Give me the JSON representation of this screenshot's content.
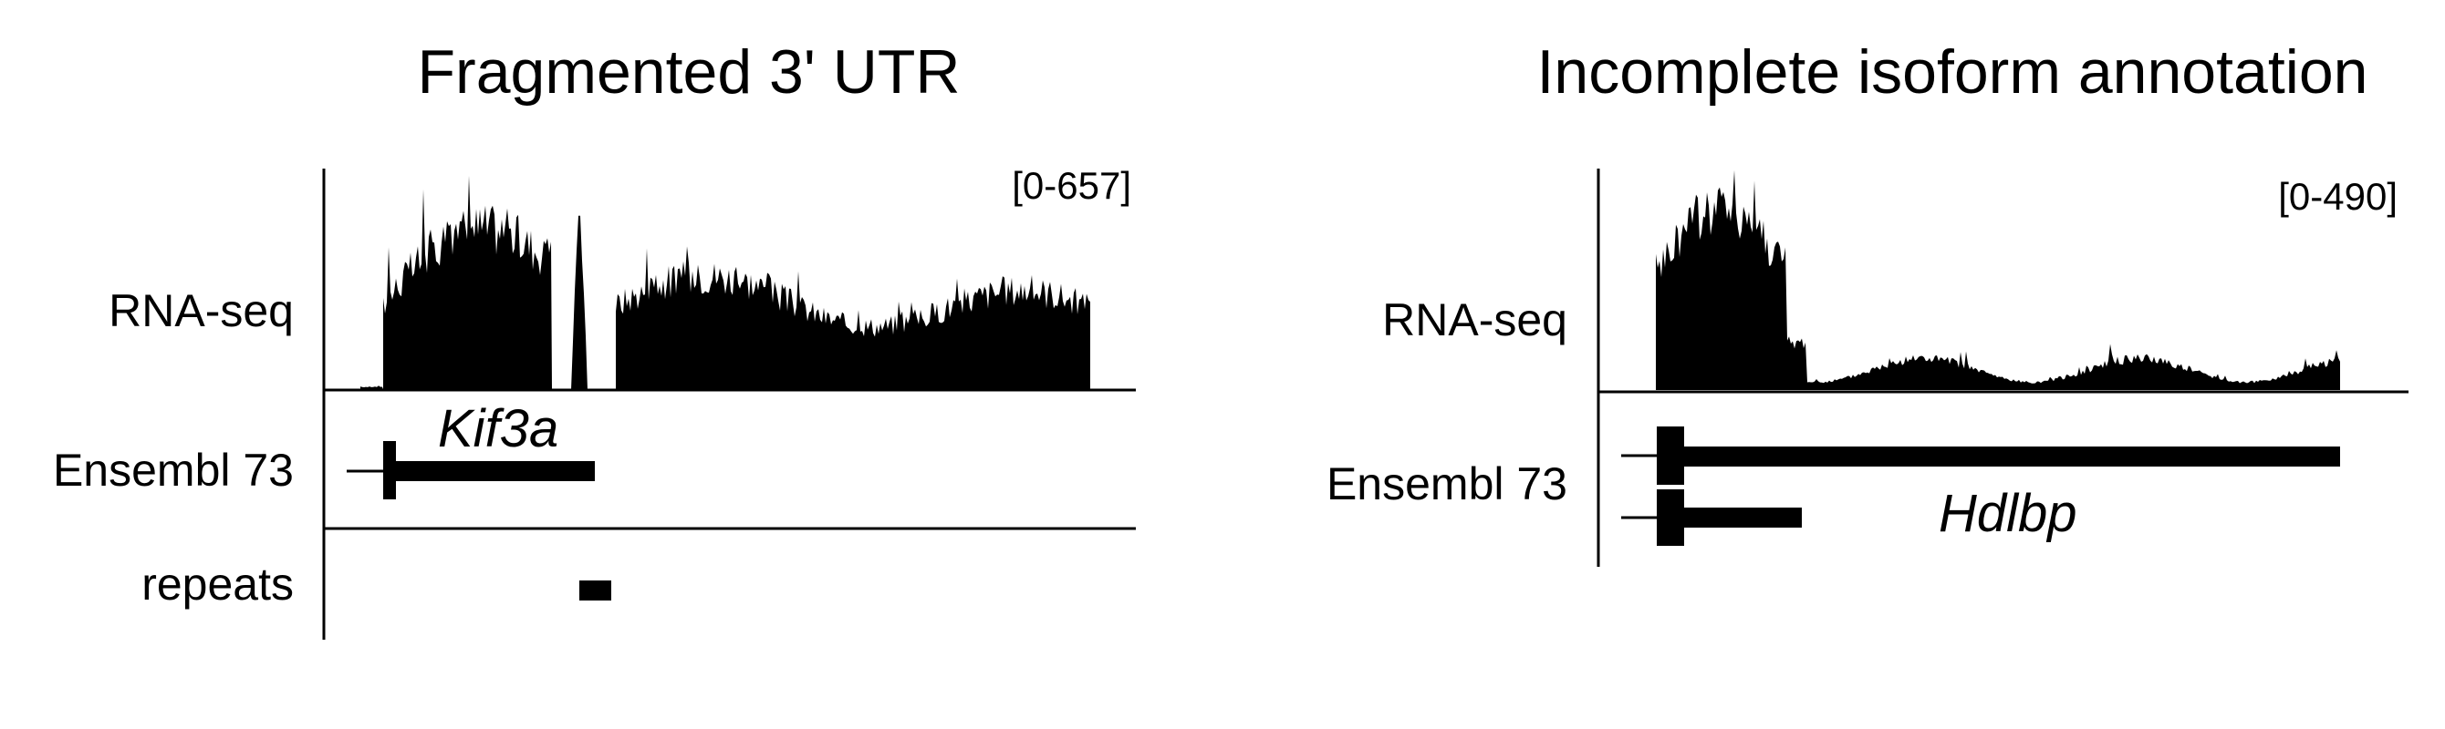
{
  "panels": [
    {
      "title": "Fragmented 3' UTR",
      "tracks": {
        "rnaseq": "RNA-seq",
        "annotation": "Ensembl 73",
        "repeats": "repeats"
      },
      "data_range": "[0-657]",
      "gene": "Kif3a",
      "colors": {
        "signal": "#000000",
        "axis": "#000000"
      }
    },
    {
      "title": "Incomplete isoform annotation",
      "tracks": {
        "rnaseq": "RNA-seq",
        "annotation": "Ensembl 73"
      },
      "data_range": "[0-490]",
      "gene": "Hdlbp",
      "colors": {
        "signal": "#000000",
        "axis": "#000000"
      }
    }
  ]
}
